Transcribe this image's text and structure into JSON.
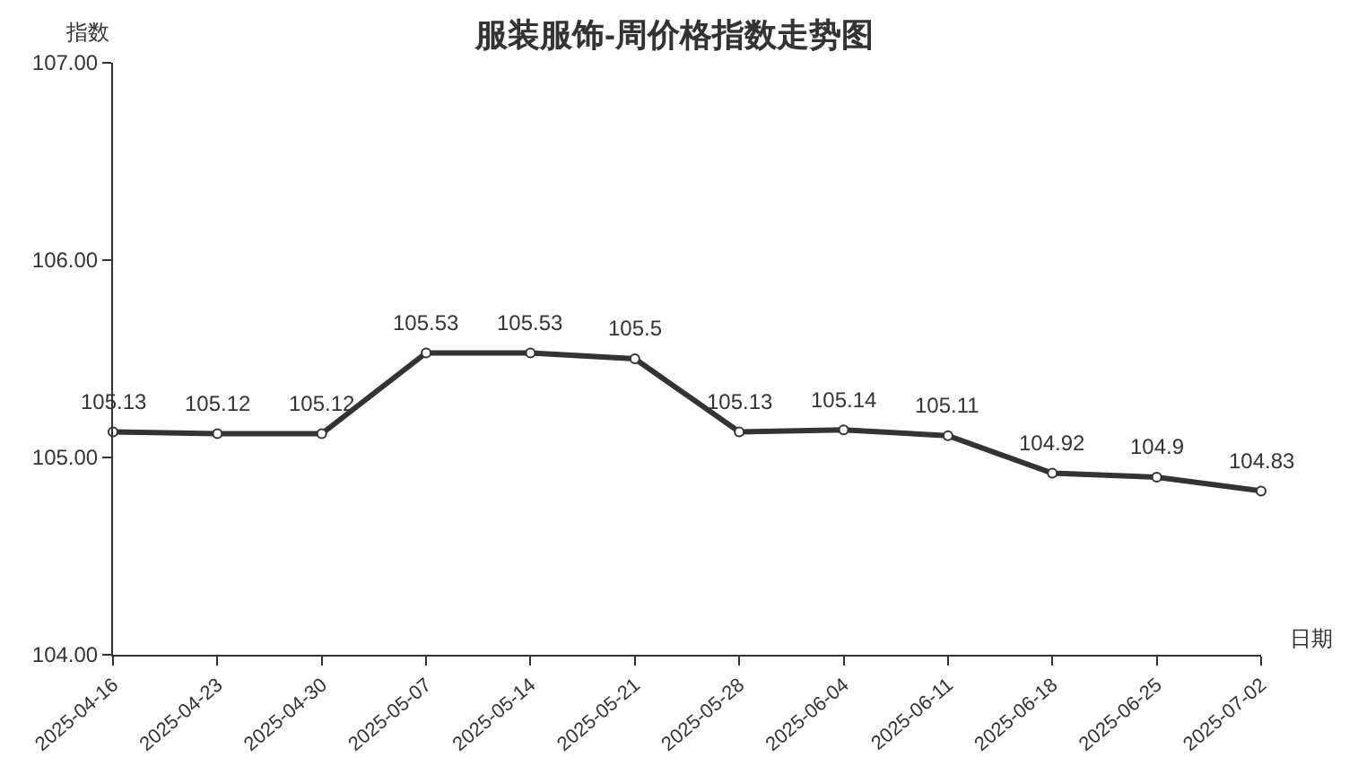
{
  "chart_data": {
    "type": "line",
    "title": "服装服饰-周价格指数走势图",
    "xlabel": "日期",
    "ylabel": "指数",
    "categories": [
      "2025-04-16",
      "2025-04-23",
      "2025-04-30",
      "2025-05-07",
      "2025-05-14",
      "2025-05-21",
      "2025-05-28",
      "2025-06-04",
      "2025-06-11",
      "2025-06-18",
      "2025-06-25",
      "2025-07-02"
    ],
    "series": [
      {
        "color": "#333333",
        "values": [
          105.13,
          105.12,
          105.12,
          105.53,
          105.53,
          105.5,
          105.13,
          105.14,
          105.11,
          104.92,
          104.9,
          104.83
        ]
      }
    ],
    "ylim": [
      104,
      107
    ],
    "yticks": [
      {
        "value": 104,
        "label": "104.00"
      },
      {
        "value": 105,
        "label": "105.00"
      },
      {
        "value": 106,
        "label": "106.00"
      },
      {
        "value": 107,
        "label": "107.00"
      }
    ],
    "data_labels": true,
    "marker": "circle",
    "line_style": "solid",
    "grid": false,
    "legend": false
  }
}
